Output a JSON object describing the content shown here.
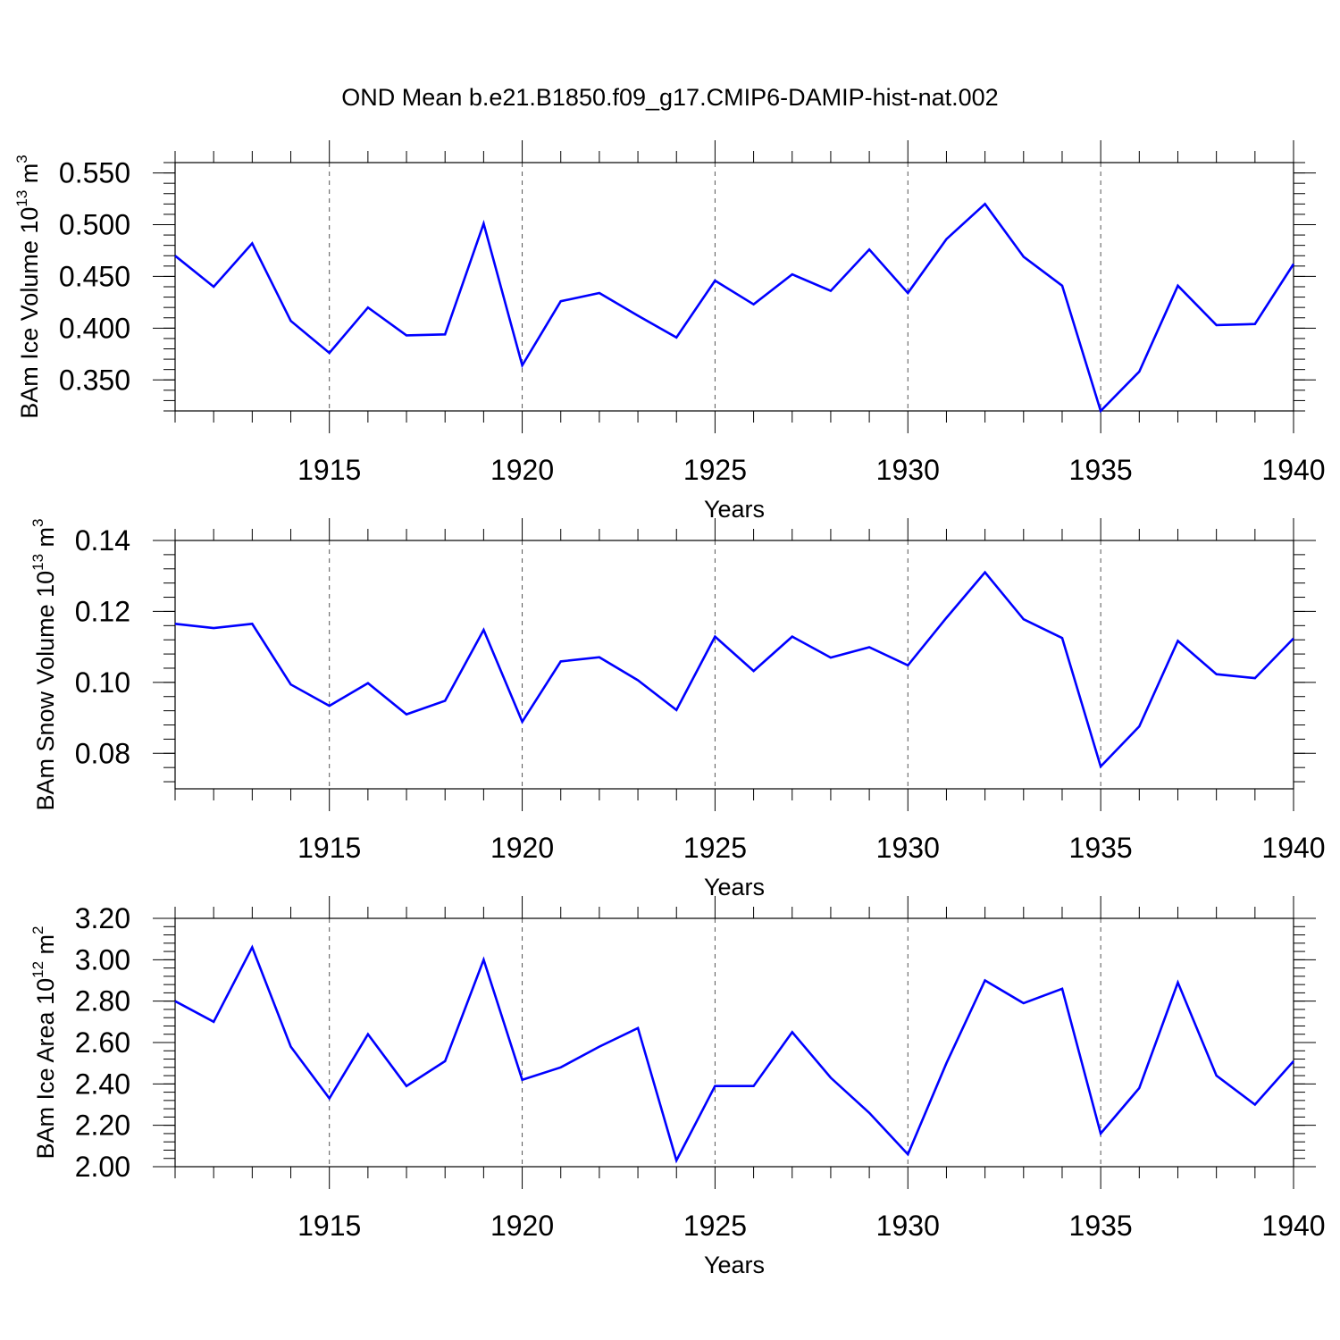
{
  "title": "OND Mean b.e21.B1850.f09_g17.CMIP6-DAMIP-hist-nat.002",
  "colors": {
    "line": "#0000ff",
    "axis": "#000000",
    "grid": "#555555"
  },
  "chart_data": [
    {
      "type": "line",
      "title": "OND Mean b.e21.B1850.f09_g17.CMIP6-DAMIP-hist-nat.002",
      "xlabel": "Years",
      "ylabel_main": "BAm Ice Volume 10",
      "ylabel_sup": "13",
      "ylabel_after": " m",
      "ylabel_sup2": "3",
      "xlim": [
        1911,
        1940
      ],
      "ylim": [
        0.32,
        0.56
      ],
      "x_ticks": [
        1915,
        1920,
        1925,
        1930,
        1935,
        1940
      ],
      "x_tick_labels": [
        "1915",
        "1920",
        "1925",
        "1930",
        "1935",
        "1940"
      ],
      "y_ticks": [
        0.35,
        0.4,
        0.45,
        0.5,
        0.55
      ],
      "y_tick_labels": [
        "0.350",
        "0.400",
        "0.450",
        "0.500",
        "0.550"
      ],
      "grid": "vertical dashed at major x ticks",
      "series": [
        {
          "name": "BAm Ice Volume",
          "x": [
            1911,
            1912,
            1913,
            1914,
            1915,
            1916,
            1917,
            1918,
            1919,
            1920,
            1921,
            1922,
            1923,
            1924,
            1925,
            1926,
            1927,
            1928,
            1929,
            1930,
            1931,
            1932,
            1933,
            1934,
            1935,
            1936,
            1937,
            1938,
            1939,
            1940
          ],
          "values": [
            0.47,
            0.44,
            0.482,
            0.407,
            0.376,
            0.42,
            0.393,
            0.394,
            0.501,
            0.364,
            0.426,
            0.434,
            0.412,
            0.391,
            0.446,
            0.423,
            0.452,
            0.436,
            0.476,
            0.434,
            0.486,
            0.52,
            0.469,
            0.441,
            0.32,
            0.358,
            0.441,
            0.403,
            0.404,
            0.462
          ]
        }
      ]
    },
    {
      "type": "line",
      "xlabel": "Years",
      "ylabel_main": "BAm Snow Volume 10",
      "ylabel_sup": "13",
      "ylabel_after": " m",
      "ylabel_sup2": "3",
      "xlim": [
        1911,
        1940
      ],
      "ylim": [
        0.07,
        0.14
      ],
      "x_ticks": [
        1915,
        1920,
        1925,
        1930,
        1935,
        1940
      ],
      "x_tick_labels": [
        "1915",
        "1920",
        "1925",
        "1930",
        "1935",
        "1940"
      ],
      "y_ticks": [
        0.08,
        0.1,
        0.12,
        0.14
      ],
      "y_tick_labels": [
        "0.08",
        "0.10",
        "0.12",
        "0.14"
      ],
      "grid": "vertical dashed at major x ticks",
      "series": [
        {
          "name": "BAm Snow Volume",
          "x": [
            1911,
            1912,
            1913,
            1914,
            1915,
            1916,
            1917,
            1918,
            1919,
            1920,
            1921,
            1922,
            1923,
            1924,
            1925,
            1926,
            1927,
            1928,
            1929,
            1930,
            1931,
            1932,
            1933,
            1934,
            1935,
            1936,
            1937,
            1938,
            1939,
            1940
          ],
          "values": [
            0.1165,
            0.1153,
            0.1165,
            0.0994,
            0.0934,
            0.0998,
            0.091,
            0.0948,
            0.1148,
            0.0889,
            0.1059,
            0.1071,
            0.1006,
            0.0922,
            0.1129,
            0.1032,
            0.1129,
            0.107,
            0.1099,
            0.1048,
            0.1182,
            0.131,
            0.1178,
            0.1125,
            0.0763,
            0.0876,
            0.1117,
            0.1023,
            0.1012,
            0.1124
          ]
        }
      ]
    },
    {
      "type": "line",
      "xlabel": "Years",
      "ylabel_main": "BAm Ice Area 10",
      "ylabel_sup": "12",
      "ylabel_after": " m",
      "ylabel_sup2": "2",
      "xlim": [
        1911,
        1940
      ],
      "ylim": [
        2.0,
        3.2
      ],
      "x_ticks": [
        1915,
        1920,
        1925,
        1930,
        1935,
        1940
      ],
      "x_tick_labels": [
        "1915",
        "1920",
        "1925",
        "1930",
        "1935",
        "1940"
      ],
      "y_ticks": [
        2.0,
        2.2,
        2.4,
        2.6,
        2.8,
        3.0,
        3.2
      ],
      "y_tick_labels": [
        "2.00",
        "2.20",
        "2.40",
        "2.60",
        "2.80",
        "3.00",
        "3.20"
      ],
      "grid": "vertical dashed at major x ticks",
      "series": [
        {
          "name": "BAm Ice Area",
          "x": [
            1911,
            1912,
            1913,
            1914,
            1915,
            1916,
            1917,
            1918,
            1919,
            1920,
            1921,
            1922,
            1923,
            1924,
            1925,
            1926,
            1927,
            1928,
            1929,
            1930,
            1931,
            1932,
            1933,
            1934,
            1935,
            1936,
            1937,
            1938,
            1939,
            1940
          ],
          "values": [
            2.8,
            2.7,
            3.06,
            2.58,
            2.33,
            2.64,
            2.39,
            2.51,
            3.0,
            2.42,
            2.48,
            2.58,
            2.67,
            2.03,
            2.39,
            2.39,
            2.65,
            2.43,
            2.26,
            2.06,
            2.5,
            2.9,
            2.79,
            2.86,
            2.16,
            2.38,
            2.89,
            2.44,
            2.3,
            2.51
          ]
        }
      ]
    }
  ]
}
